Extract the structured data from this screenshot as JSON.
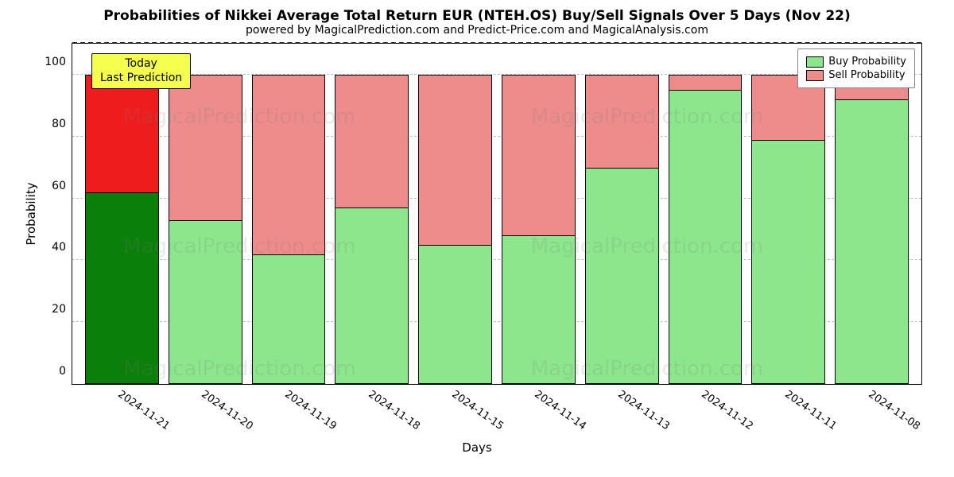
{
  "chart": {
    "type": "stacked-bar",
    "title": "Probabilities of Nikkei Average Total Return EUR (NTEH.OS) Buy/Sell Signals Over 5 Days (Nov 22)",
    "title_fontsize": 17,
    "subtitle": "powered by MagicalPrediction.com and Predict-Price.com and MagicalAnalysis.com",
    "subtitle_fontsize": 14,
    "xlabel": "Days",
    "ylabel": "Probability",
    "label_fontsize": 15,
    "background_color": "#ffffff",
    "grid_color": "#bfbfbf",
    "axis_color": "#000000",
    "ylim": [
      0,
      110
    ],
    "yticks": [
      0,
      20,
      40,
      60,
      80,
      100
    ],
    "categories": [
      "2024-11-21",
      "2024-11-20",
      "2024-11-19",
      "2024-11-18",
      "2024-11-15",
      "2024-11-14",
      "2024-11-13",
      "2024-11-12",
      "2024-11-11",
      "2024-11-08"
    ],
    "buy": [
      62,
      53,
      42,
      57,
      45,
      48,
      70,
      95,
      79,
      92
    ],
    "sell": [
      38,
      47,
      58,
      43,
      55,
      52,
      30,
      5,
      21,
      8
    ],
    "buy_color": "#8ce78c",
    "sell_color": "#ee8b8b",
    "today_buy_color": "#0a7f0a",
    "today_sell_color": "#ee1c1c",
    "bar_border_color": "#000000",
    "bar_border_width": 1.5,
    "today_label": "Today\nLast Prediction",
    "today_box_color": "#f4ff4e",
    "legend": {
      "position": "top-right",
      "items": [
        {
          "label": "Buy Probability",
          "color": "#8ce78c"
        },
        {
          "label": "Sell Probability",
          "color": "#ee8b8b"
        }
      ]
    },
    "watermark_text": "MagicalPrediction.com",
    "hundred_line_value": 110
  }
}
